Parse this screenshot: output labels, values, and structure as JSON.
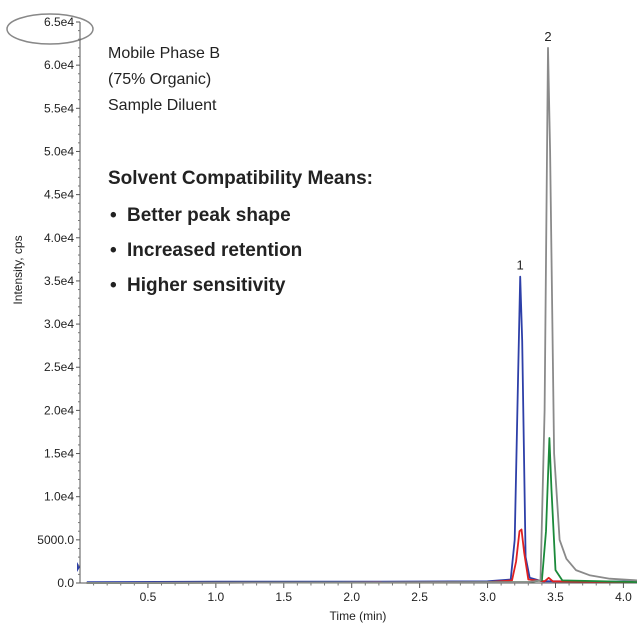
{
  "chart_data": {
    "type": "line",
    "xlabel": "Time (min)",
    "ylabel": "Intensity, cps",
    "xlim": [
      0,
      4.1
    ],
    "ylim": [
      0,
      65000
    ],
    "x_ticks": [
      "0.5",
      "1.0",
      "1.5",
      "2.0",
      "2.5",
      "3.0",
      "3.5",
      "4.0"
    ],
    "y_ticks": [
      "0.0",
      "5000.0",
      "1.0e4",
      "1.5e4",
      "2.0e4",
      "2.5e4",
      "3.0e4",
      "3.5e4",
      "4.0e4",
      "4.5e4",
      "5.0e4",
      "5.5e4",
      "6.0e4",
      "6.5e4"
    ],
    "series": [
      {
        "color": "#2d3fa8",
        "x": [
          0.05,
          1.0,
          2.0,
          3.0,
          3.17,
          3.2,
          3.225,
          3.24,
          3.255,
          3.28,
          3.31,
          3.4,
          3.6,
          4.1
        ],
        "y": [
          100,
          150,
          150,
          200,
          400,
          5000,
          24000,
          35500,
          28000,
          3000,
          600,
          200,
          200,
          150
        ]
      },
      {
        "color": "#e02020",
        "x": [
          0.05,
          3.0,
          3.18,
          3.21,
          3.235,
          3.25,
          3.27,
          3.3,
          3.42,
          3.45,
          3.48,
          4.1
        ],
        "y": [
          0,
          100,
          300,
          2500,
          6000,
          6200,
          3500,
          400,
          200,
          600,
          200,
          100
        ]
      },
      {
        "color": "#1b8a3a",
        "x": [
          0.05,
          3.3,
          3.4,
          3.43,
          3.455,
          3.47,
          3.5,
          3.55,
          4.1
        ],
        "y": [
          0,
          100,
          300,
          6000,
          16800,
          11000,
          1500,
          300,
          100
        ]
      },
      {
        "color": "#8a8a8a",
        "x": [
          0.05,
          3.3,
          3.39,
          3.42,
          3.445,
          3.46,
          3.49,
          3.53,
          3.58,
          3.65,
          3.75,
          3.9,
          4.1
        ],
        "y": [
          0,
          100,
          300,
          20000,
          62000,
          50000,
          15000,
          5000,
          2800,
          1500,
          900,
          500,
          300
        ]
      }
    ],
    "peaks": [
      {
        "label": "1",
        "x": 3.24,
        "y": 35500
      },
      {
        "label": "2",
        "x": 3.445,
        "y": 62000
      }
    ],
    "annotations": {
      "lines": [
        "Mobile Phase B",
        "(75% Organic)",
        "Sample Diluent"
      ],
      "heading": "Solvent Compatibility Means:",
      "bullets": [
        "Better peak shape",
        "Increased retention",
        "Higher sensitivity"
      ]
    },
    "grid": false,
    "legend": "none"
  }
}
